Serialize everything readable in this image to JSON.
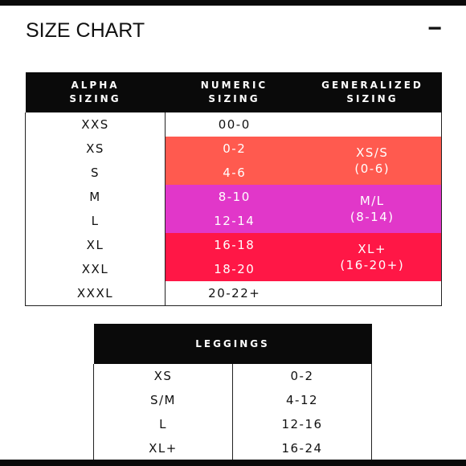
{
  "page": {
    "title": "SIZE CHART",
    "collapse_icon": "−"
  },
  "size_chart": {
    "headers": {
      "alpha": [
        "ALPHA",
        "SIZING"
      ],
      "numeric": [
        "NUMERIC",
        "SIZING"
      ],
      "generalized": [
        "GENERALIZED",
        "SIZING"
      ]
    },
    "rows": [
      {
        "alpha": "XXS",
        "numeric": "00-0"
      },
      {
        "alpha": "XS",
        "numeric": "0-2"
      },
      {
        "alpha": "S",
        "numeric": "4-6"
      },
      {
        "alpha": "M",
        "numeric": "8-10"
      },
      {
        "alpha": "L",
        "numeric": "12-14"
      },
      {
        "alpha": "XL",
        "numeric": "16-18"
      },
      {
        "alpha": "XXL",
        "numeric": "18-20"
      },
      {
        "alpha": "XXXL",
        "numeric": "20-22+"
      }
    ],
    "groups": [
      {
        "line1": "XS/S",
        "line2": "(0-6)",
        "color": "#ff5a4f"
      },
      {
        "line1": "M/L",
        "line2": "(8-14)",
        "color": "#e137c9"
      },
      {
        "line1": "XL+",
        "line2": "(16-20+)",
        "color": "#ff1746"
      }
    ]
  },
  "leggings": {
    "header": "LEGGINGS",
    "rows": [
      {
        "size": "XS",
        "range": "0-2"
      },
      {
        "size": "S/M",
        "range": "4-12"
      },
      {
        "size": "L",
        "range": "12-16"
      },
      {
        "size": "XL+",
        "range": "16-24"
      }
    ]
  }
}
